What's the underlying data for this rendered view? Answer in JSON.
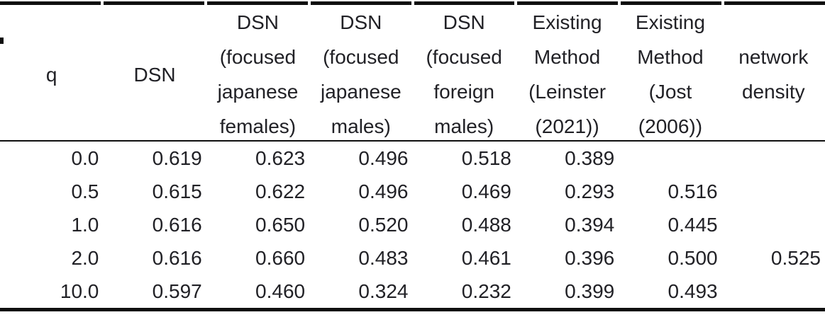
{
  "table": {
    "columns": [
      {
        "key": "q",
        "label": "q"
      },
      {
        "key": "dsn",
        "label": "DSN"
      },
      {
        "key": "dsn_focused_japanese_females",
        "label": "DSN\n(focused\njapanese\nfemales)"
      },
      {
        "key": "dsn_focused_japanese_males",
        "label": "DSN\n(focused\njapanese\nmales)"
      },
      {
        "key": "dsn_focused_foreign_males",
        "label": "DSN\n(focused\nforeign\nmales)"
      },
      {
        "key": "existing_method_leinster",
        "label": "Existing\nMethod\n(Leinster\n(2021))"
      },
      {
        "key": "existing_method_jost",
        "label": "Existing\nMethod\n(Jost\n(2006))"
      },
      {
        "key": "network_density",
        "label": "network\ndensity"
      }
    ],
    "rows": [
      {
        "cells": [
          "0.0",
          "0.619",
          "0.623",
          "0.496",
          "0.518",
          "0.389",
          "",
          ""
        ]
      },
      {
        "cells": [
          "0.5",
          "0.615",
          "0.622",
          "0.496",
          "0.469",
          "0.293",
          "0.516",
          ""
        ]
      },
      {
        "cells": [
          "1.0",
          "0.616",
          "0.650",
          "0.520",
          "0.488",
          "0.394",
          "0.445",
          ""
        ]
      },
      {
        "cells": [
          "2.0",
          "0.616",
          "0.660",
          "0.483",
          "0.461",
          "0.396",
          "0.500",
          "0.525"
        ]
      },
      {
        "cells": [
          "10.0",
          "0.597",
          "0.460",
          "0.324",
          "0.232",
          "0.399",
          "0.493",
          ""
        ]
      }
    ]
  },
  "colors": {
    "text": "#212126",
    "rule": "#0e0e0e",
    "background": "#ffffff"
  }
}
